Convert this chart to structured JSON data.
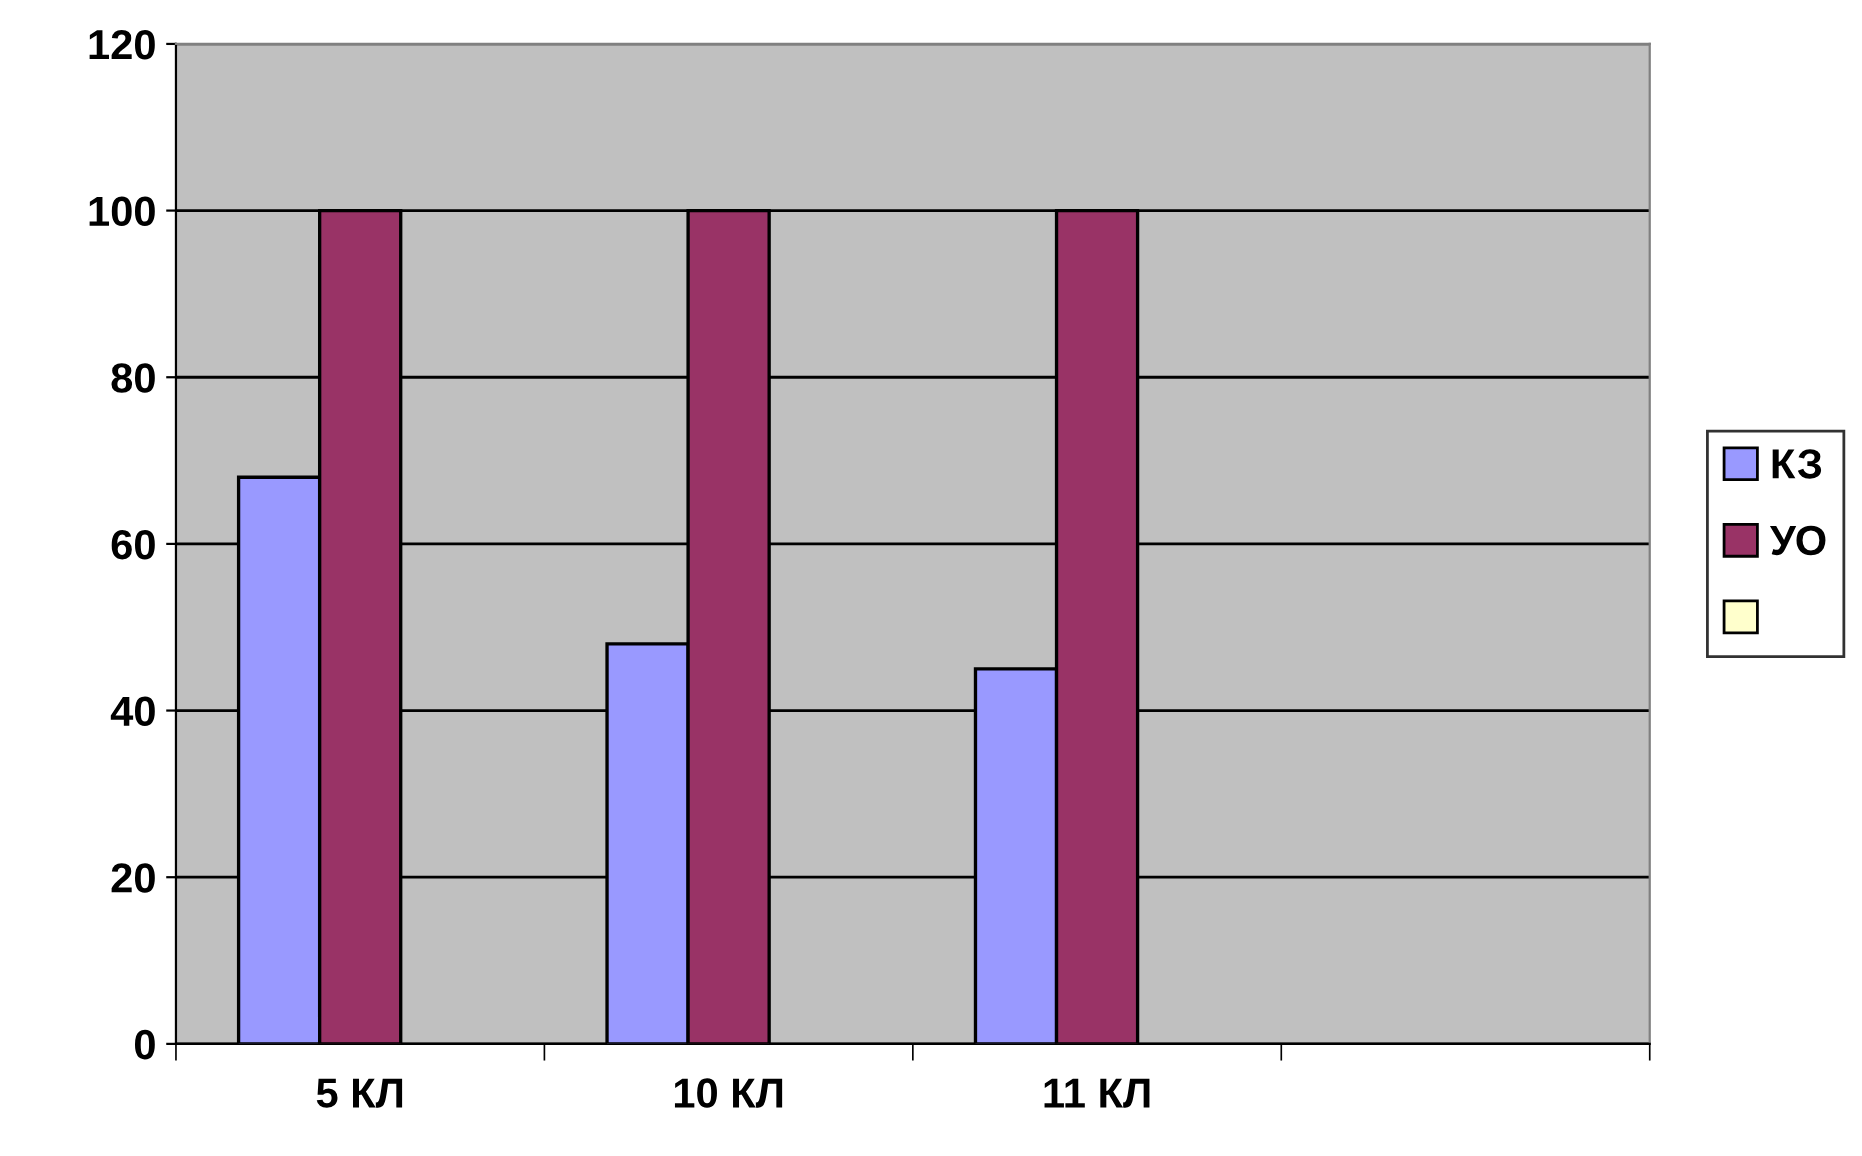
{
  "chart_data": {
    "type": "bar",
    "categories": [
      "5 КЛ",
      "10 КЛ",
      "11 КЛ",
      null
    ],
    "series": [
      {
        "name": "КЗ",
        "color": "#9999ff",
        "values": [
          68,
          48,
          45,
          null
        ]
      },
      {
        "name": "УО",
        "color": "#993366",
        "values": [
          100,
          100,
          100,
          null
        ]
      },
      {
        "color": "#ffffcc",
        "values": [
          null,
          null,
          null,
          null
        ]
      }
    ],
    "ylim": [
      0,
      120
    ],
    "yticks": [
      0,
      20,
      40,
      60,
      80,
      100,
      120
    ],
    "grid": "y",
    "legend": "right"
  }
}
